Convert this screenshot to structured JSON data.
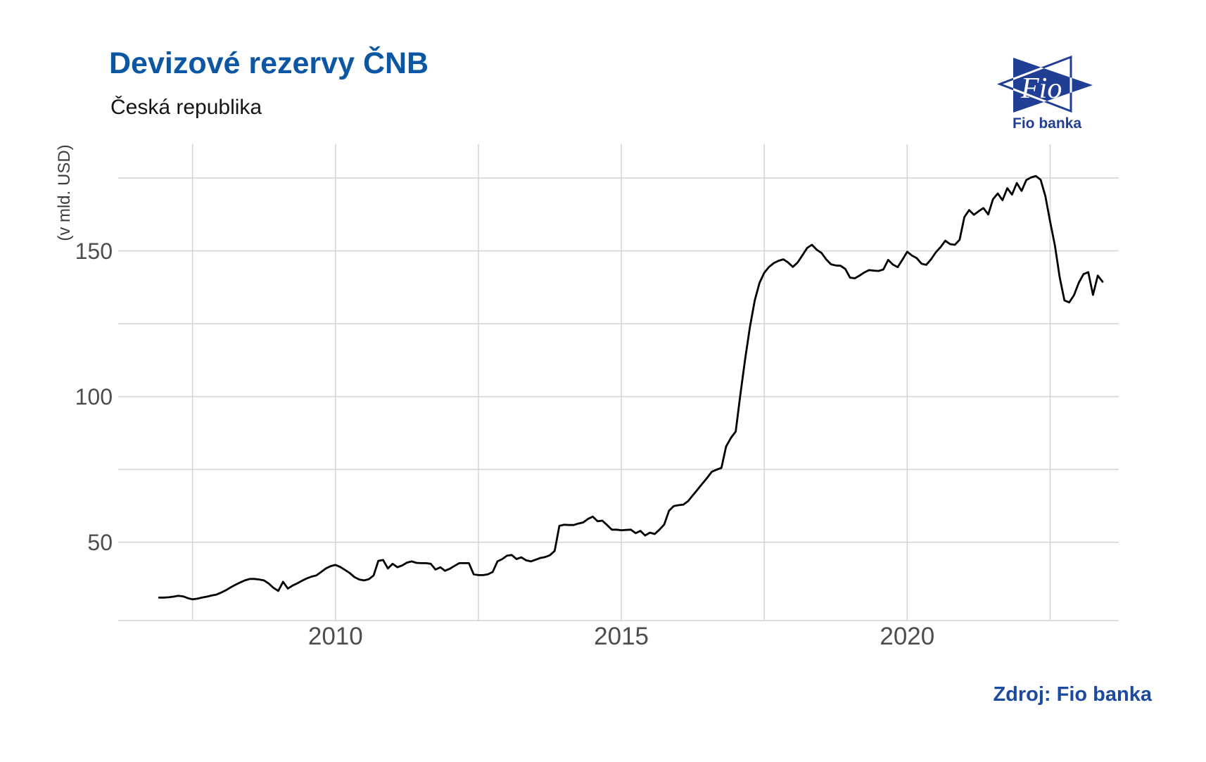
{
  "logo": {
    "mark_text": "Fio",
    "caption": "Fio banka",
    "color": "#203e94"
  },
  "footer": {
    "source": "Zdroj: Fio banka"
  },
  "chart_data": {
    "type": "line",
    "title": "Devizové rezervy ČNB",
    "subtitle": "Česká republika",
    "xlabel": "",
    "ylabel": "(v mld. USD)",
    "grid": true,
    "legend": "none",
    "line_color": "#000000",
    "grid_color": "#d3d3d3",
    "tick_color": "#4d4d4d",
    "x_range": [
      2006.2,
      2023.7
    ],
    "y_range": [
      23.1,
      186.6
    ],
    "x_ticks_major": [
      {
        "value": 2010,
        "label": "2010"
      },
      {
        "value": 2015,
        "label": "2015"
      },
      {
        "value": 2020,
        "label": "2020"
      }
    ],
    "x_ticks_minor": [
      2007.5,
      2012.5,
      2017.5,
      2022.5
    ],
    "y_ticks_major": [
      {
        "value": 50,
        "label": "50"
      },
      {
        "value": 100,
        "label": "100"
      },
      {
        "value": 150,
        "label": "150"
      }
    ],
    "y_ticks_minor": [
      75,
      125,
      175
    ],
    "series": [
      {
        "name": "Devizové rezervy ČNB (v mld. USD)",
        "x_start": 2006.9167,
        "x_step": 0.0833333,
        "values": [
          31.0,
          31.0,
          31.1,
          31.3,
          31.6,
          31.4,
          30.8,
          30.4,
          30.6,
          31.0,
          31.3,
          31.7,
          32.0,
          32.7,
          33.5,
          34.5,
          35.4,
          36.2,
          36.9,
          37.4,
          37.4,
          37.2,
          36.9,
          35.8,
          34.3,
          33.3,
          36.4,
          34.1,
          35.1,
          35.9,
          36.8,
          37.6,
          38.2,
          38.6,
          39.8,
          41.0,
          41.8,
          42.2,
          41.5,
          40.5,
          39.4,
          38.0,
          37.2,
          36.9,
          37.3,
          38.6,
          43.6,
          43.9,
          41.0,
          42.6,
          41.4,
          42.0,
          43.0,
          43.4,
          42.9,
          42.8,
          42.8,
          42.6,
          40.6,
          41.4,
          40.2,
          40.9,
          41.9,
          42.8,
          42.8,
          42.8,
          39.0,
          38.7,
          38.7,
          39.0,
          39.8,
          43.4,
          44.2,
          45.4,
          45.6,
          44.2,
          44.8,
          43.8,
          43.4,
          44.0,
          44.6,
          44.9,
          45.5,
          47.0,
          55.6,
          56.0,
          55.9,
          55.9,
          56.4,
          56.8,
          58.0,
          58.8,
          57.2,
          57.4,
          55.9,
          54.3,
          54.3,
          54.1,
          54.2,
          54.3,
          53.1,
          53.9,
          52.3,
          53.3,
          52.8,
          54.3,
          56.1,
          60.8,
          62.4,
          62.7,
          62.9,
          64.1,
          66.1,
          68.1,
          70.1,
          72.1,
          74.2,
          74.9,
          75.5,
          82.9,
          85.8,
          88.0,
          101.0,
          113.0,
          124.0,
          133.0,
          139.0,
          142.5,
          144.5,
          145.8,
          146.6,
          147.1,
          146.0,
          144.5,
          146.0,
          148.5,
          151.0,
          152.1,
          150.4,
          149.3,
          147.1,
          145.4,
          145.0,
          144.9,
          143.8,
          140.8,
          140.6,
          141.5,
          142.6,
          143.4,
          143.2,
          143.1,
          143.6,
          146.9,
          145.3,
          144.4,
          147.0,
          149.7,
          148.4,
          147.5,
          145.6,
          145.2,
          147.1,
          149.5,
          151.3,
          153.5,
          152.3,
          152.1,
          153.8,
          161.6,
          164.0,
          162.4,
          163.6,
          164.7,
          162.5,
          167.7,
          169.7,
          167.4,
          171.5,
          169.3,
          173.3,
          170.6,
          174.3,
          175.2,
          175.7,
          174.4,
          168.8,
          160.0,
          151.8,
          141.0,
          133.0,
          132.3,
          134.8,
          139.0,
          142.0,
          142.7,
          134.9,
          141.5,
          139.4
        ]
      }
    ]
  }
}
